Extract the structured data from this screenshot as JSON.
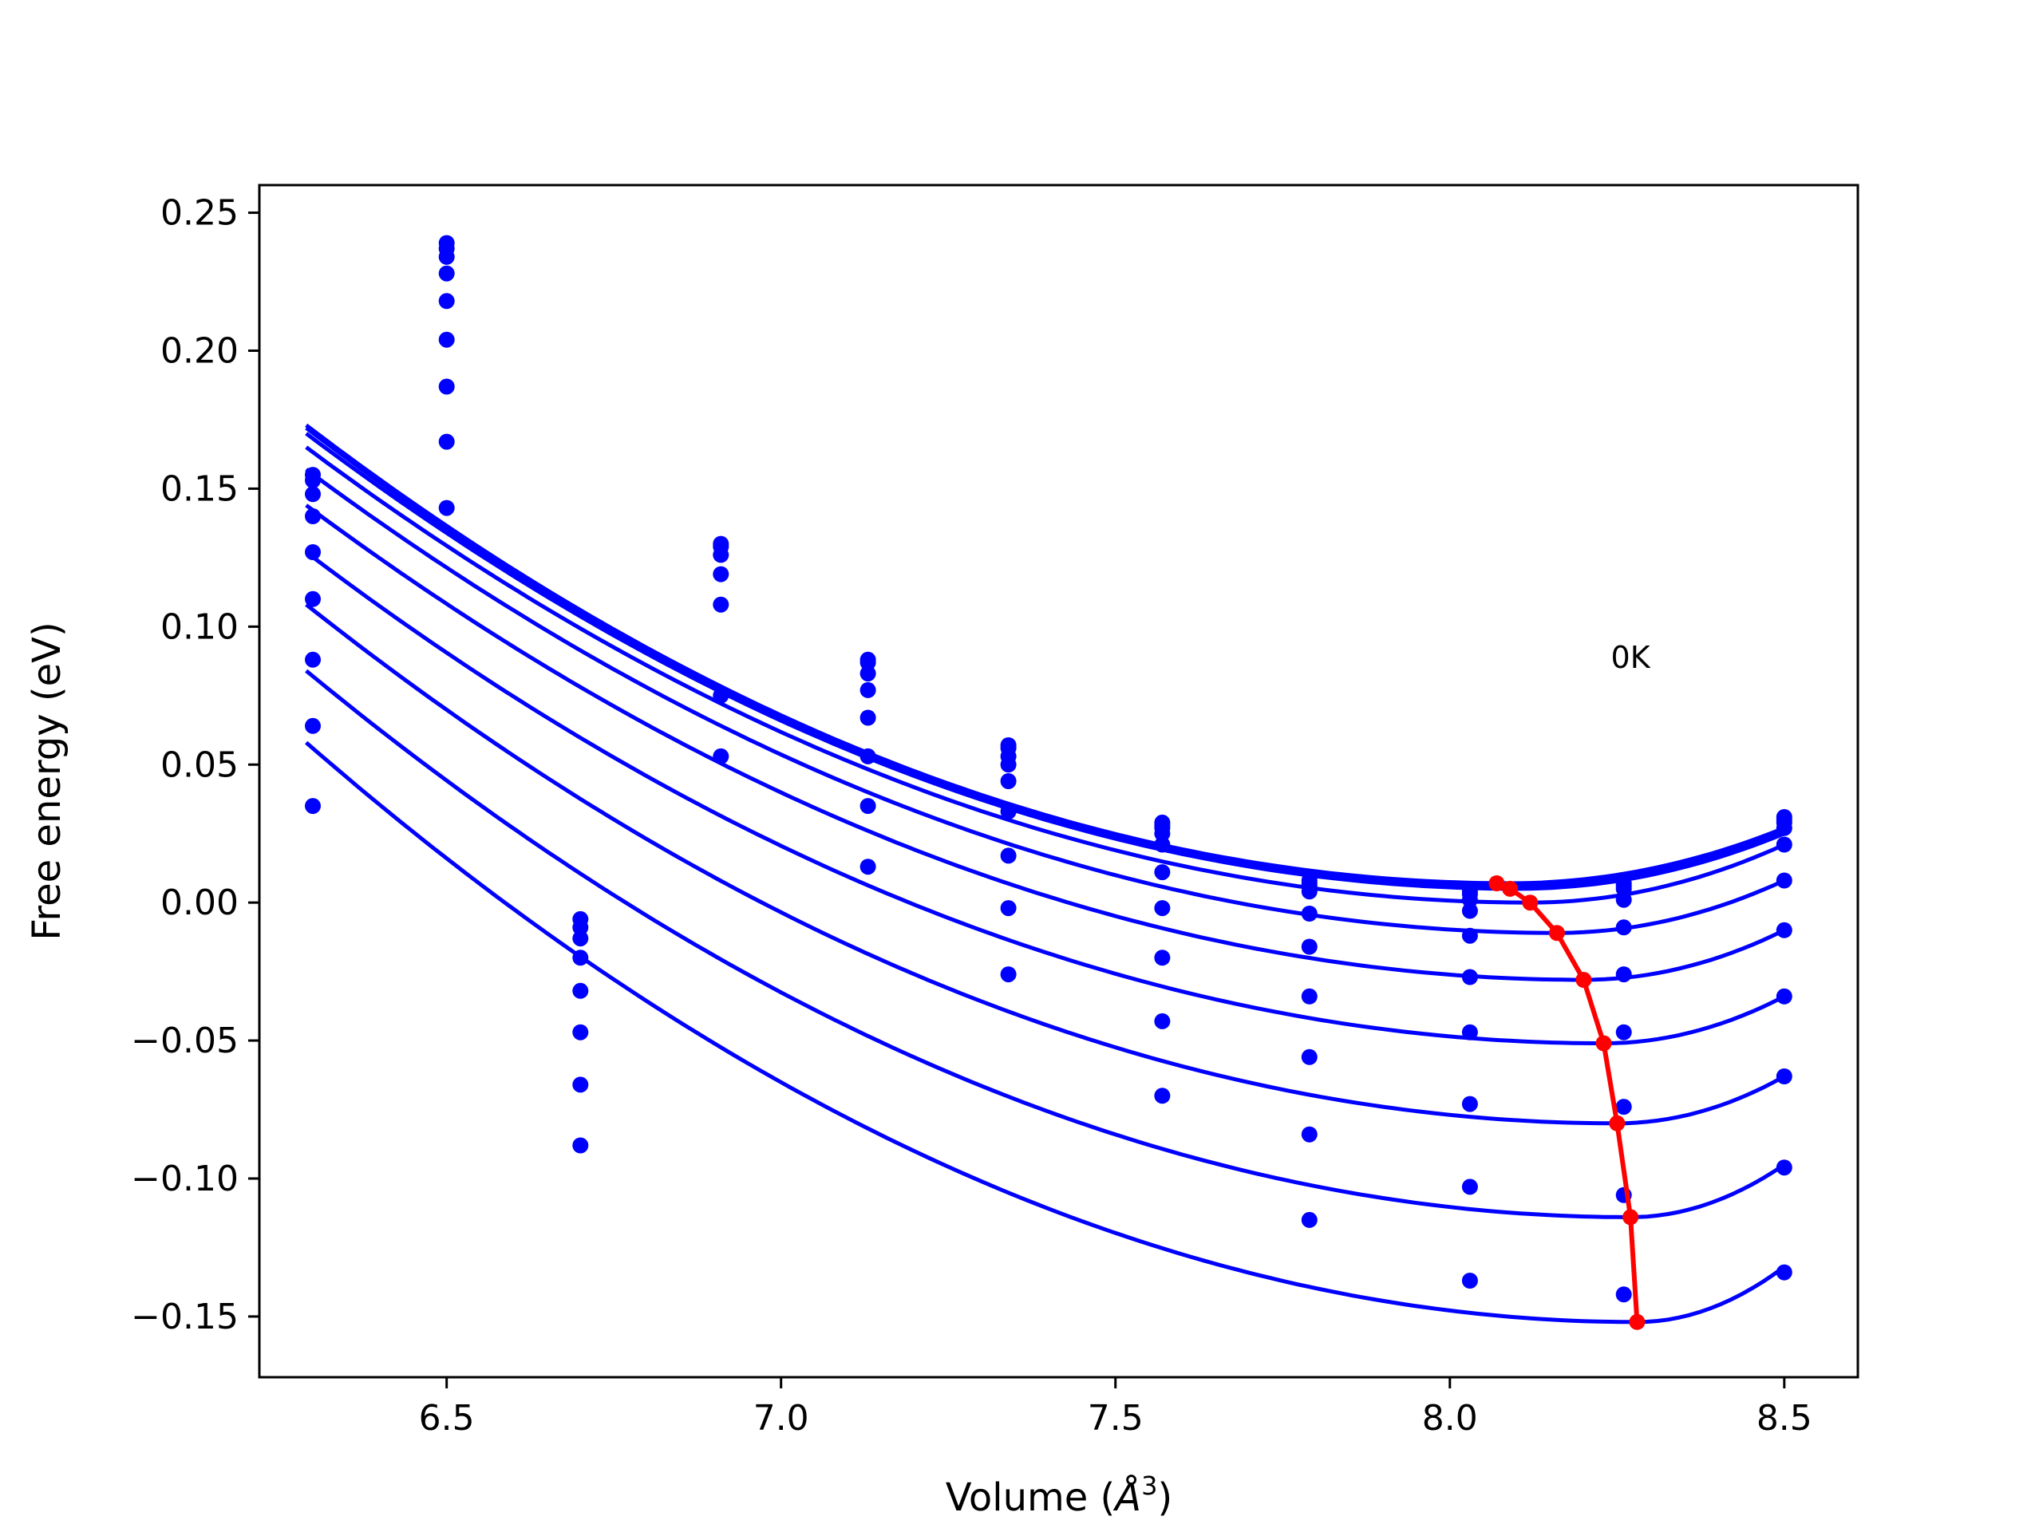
{
  "chart_data": {
    "type": "scatter",
    "title": "",
    "xlabel": "Volume (",
    "xlabel_symbol": "Å",
    "xlabel_exponent": "3",
    "xlabel_close": ")",
    "ylabel": "Free energy (eV)",
    "xlim": [
      6.22,
      8.61
    ],
    "ylim": [
      -0.172,
      0.26
    ],
    "xticks": [
      6.5,
      7.0,
      7.5,
      8.0,
      8.5
    ],
    "xtick_labels": [
      "6.5",
      "7.0",
      "7.5",
      "8.0",
      "8.5"
    ],
    "yticks": [
      -0.15,
      -0.1,
      -0.05,
      0.0,
      0.05,
      0.1,
      0.15,
      0.2,
      0.25
    ],
    "ytick_labels": [
      "−0.15",
      "−0.10",
      "−0.05",
      "0.00",
      "0.05",
      "0.10",
      "0.15",
      "0.20",
      "0.25"
    ],
    "annotation": "0K",
    "annotation_pos": {
      "x": 8.27,
      "y": 0.085
    },
    "colors": {
      "points": "#0000ff",
      "curves": "#0000ff",
      "min_line": "#ff0000",
      "axes": "#000000"
    },
    "scatter_x": [
      6.3,
      6.5,
      6.7,
      6.91,
      7.13,
      7.34,
      7.57,
      7.79,
      8.03,
      8.26,
      8.5
    ],
    "scatter_columns": [
      [
        0.155,
        0.153,
        0.148,
        0.14,
        0.127,
        0.11,
        0.088,
        0.064,
        0.035
      ],
      [
        0.239,
        0.237,
        0.234,
        0.228,
        0.218,
        0.204,
        0.187,
        0.167,
        0.143
      ],
      [
        -0.006,
        -0.009,
        -0.013,
        -0.02,
        -0.032,
        -0.047,
        -0.066,
        -0.088
      ],
      [
        0.13,
        0.129,
        0.126,
        0.119,
        0.108,
        0.075,
        0.053
      ],
      [
        0.088,
        0.087,
        0.083,
        0.077,
        0.067,
        0.053,
        0.035,
        0.013
      ],
      [
        0.057,
        0.056,
        0.053,
        0.05,
        0.044,
        0.033,
        0.017,
        -0.002,
        -0.026
      ],
      [
        0.029,
        0.028,
        0.027,
        0.025,
        0.021,
        0.011,
        -0.002,
        -0.02,
        -0.043,
        -0.07
      ],
      [
        0.008,
        0.007,
        0.006,
        0.004,
        -0.004,
        -0.016,
        -0.034,
        -0.056,
        -0.084,
        -0.115
      ],
      [
        0.004,
        0.003,
        0.001,
        -0.003,
        -0.012,
        -0.027,
        -0.047,
        -0.073,
        -0.103,
        -0.137
      ],
      [
        0.007,
        0.006,
        0.005,
        0.001,
        -0.009,
        -0.026,
        -0.047,
        -0.074,
        -0.106,
        -0.142
      ],
      [
        0.031,
        0.03,
        0.029,
        0.027,
        0.021,
        0.008,
        -0.01,
        -0.034,
        -0.063,
        -0.096,
        -0.134
      ]
    ],
    "fit_curves": [
      {
        "name": "fit-1",
        "x_range": [
          6.29,
          8.5
        ],
        "y_start": 0.173,
        "x_min": 8.09,
        "y_min": 0.007,
        "y_end": 0.027
      },
      {
        "name": "fit-2",
        "x_range": [
          6.29,
          8.5
        ],
        "y_start": 0.172,
        "x_min": 8.09,
        "y_min": 0.006,
        "y_end": 0.026
      },
      {
        "name": "fit-3",
        "x_range": [
          6.29,
          8.5
        ],
        "y_start": 0.17,
        "x_min": 8.1,
        "y_min": 0.005,
        "y_end": 0.025
      },
      {
        "name": "fit-4",
        "x_range": [
          6.29,
          8.5
        ],
        "y_start": 0.165,
        "x_min": 8.12,
        "y_min": 0.0,
        "y_end": 0.021
      },
      {
        "name": "fit-5",
        "x_range": [
          6.29,
          8.5
        ],
        "y_start": 0.157,
        "x_min": 8.16,
        "y_min": -0.011,
        "y_end": 0.008
      },
      {
        "name": "fit-6",
        "x_range": [
          6.29,
          8.5
        ],
        "y_start": 0.144,
        "x_min": 8.2,
        "y_min": -0.028,
        "y_end": -0.01
      },
      {
        "name": "fit-7",
        "x_range": [
          6.29,
          8.5
        ],
        "y_start": 0.127,
        "x_min": 8.23,
        "y_min": -0.051,
        "y_end": -0.034
      },
      {
        "name": "fit-8",
        "x_range": [
          6.29,
          8.5
        ],
        "y_start": 0.108,
        "x_min": 8.25,
        "y_min": -0.08,
        "y_end": -0.063
      },
      {
        "name": "fit-9",
        "x_range": [
          6.29,
          8.5
        ],
        "y_start": 0.084,
        "x_min": 8.27,
        "y_min": -0.114,
        "y_end": -0.095
      },
      {
        "name": "fit-10",
        "x_range": [
          6.29,
          8.5
        ],
        "y_start": 0.058,
        "x_min": 8.28,
        "y_min": -0.152,
        "y_end": -0.132
      }
    ],
    "minimum_line": {
      "x": [
        8.07,
        8.09,
        8.12,
        8.16,
        8.2,
        8.23,
        8.25,
        8.27,
        8.28
      ],
      "y": [
        0.007,
        0.005,
        0.0,
        -0.011,
        -0.028,
        -0.051,
        -0.08,
        -0.114,
        -0.152
      ]
    }
  }
}
